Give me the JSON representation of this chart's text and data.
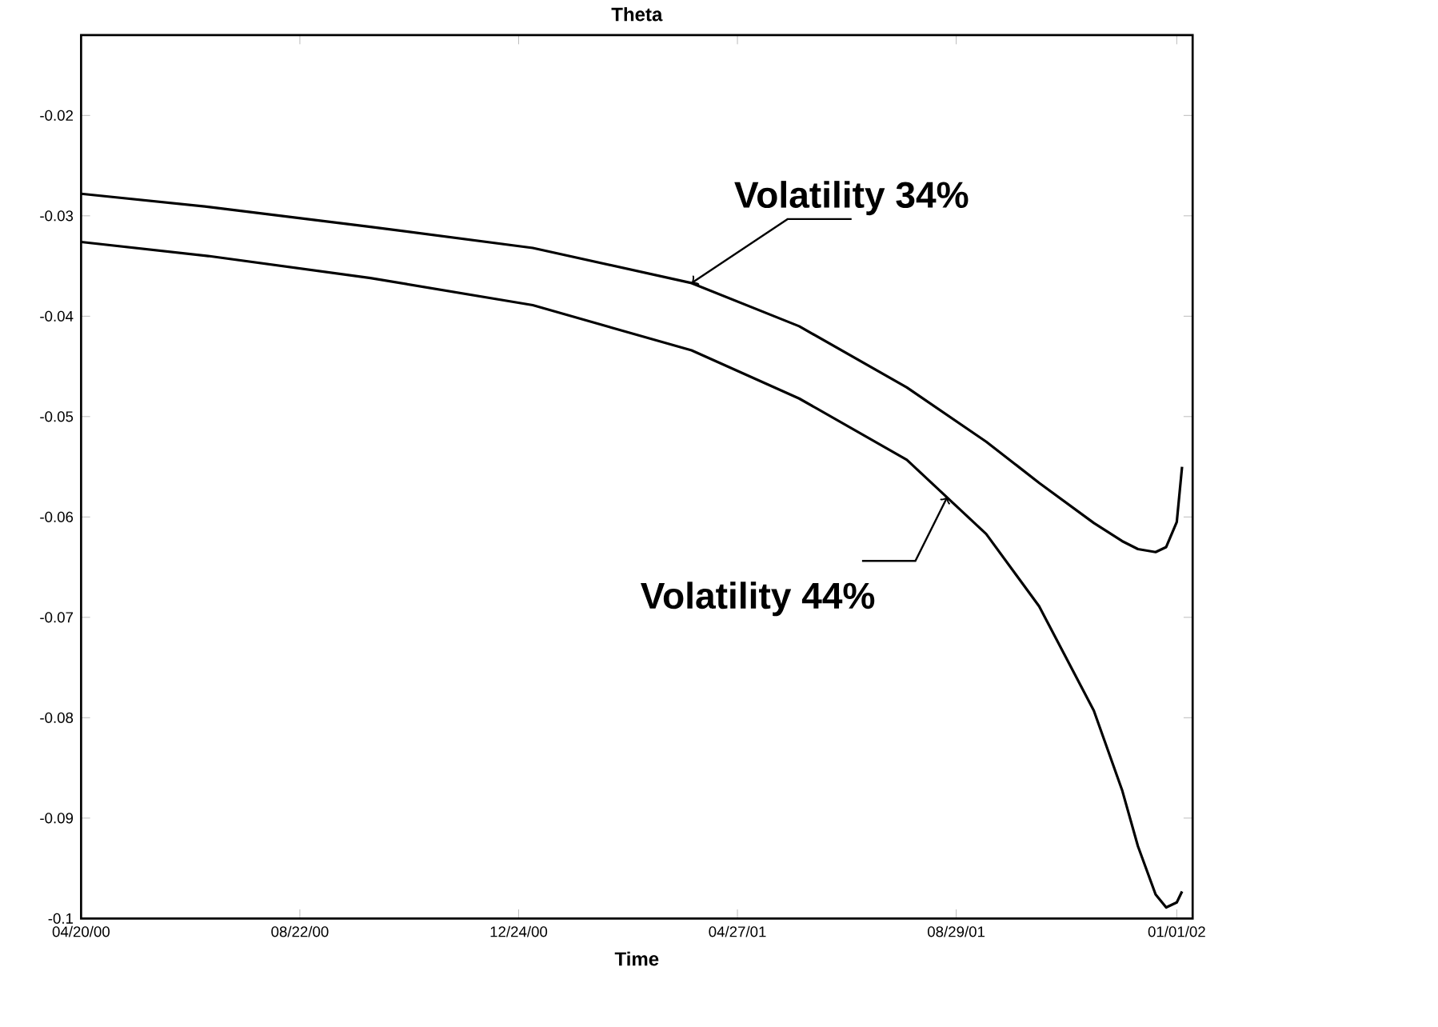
{
  "chart_data": {
    "type": "line",
    "title": "Theta",
    "xlabel": "Time",
    "x": [
      "2000-04-20",
      "2000-07-01",
      "2000-10-01",
      "2001-01-01",
      "2001-04-01",
      "2001-06-01",
      "2001-08-01",
      "2001-09-15",
      "2001-10-15",
      "2001-11-15",
      "2001-12-01",
      "2001-12-10",
      "2001-12-20",
      "2001-12-26",
      "2002-01-01",
      "2002-01-04"
    ],
    "series": [
      {
        "color": "#000000",
        "values": [
          -0.0278,
          -0.0291,
          -0.0311,
          -0.0332,
          -0.0367,
          -0.041,
          -0.0471,
          -0.0525,
          -0.0566,
          -0.0606,
          -0.0624,
          -0.0632,
          -0.0635,
          -0.063,
          -0.0605,
          -0.055
        ]
      },
      {
        "color": "#000000",
        "values": [
          -0.0326,
          -0.034,
          -0.0362,
          -0.0389,
          -0.0434,
          -0.0482,
          -0.0543,
          -0.0617,
          -0.0689,
          -0.0793,
          -0.0872,
          -0.0928,
          -0.0976,
          -0.0989,
          -0.0984,
          -0.0973
        ]
      }
    ],
    "xlim": [
      "2000-04-20",
      "2002-01-10"
    ],
    "xticks": [
      {
        "value": "2000-04-20",
        "label": "04/20/00"
      },
      {
        "value": "2000-08-22",
        "label": "08/22/00"
      },
      {
        "value": "2000-12-24",
        "label": "12/24/00"
      },
      {
        "value": "2001-04-27",
        "label": "04/27/01"
      },
      {
        "value": "2001-08-29",
        "label": "08/29/01"
      },
      {
        "value": "2002-01-01",
        "label": "01/01/02"
      }
    ],
    "ylim": [
      -0.1,
      -0.012
    ],
    "yticks": [
      -0.1,
      -0.09,
      -0.08,
      -0.07,
      -0.06,
      -0.05,
      -0.04,
      -0.03,
      -0.02
    ],
    "annotations": [
      {
        "text": "Volatility 34%",
        "x": "2001-04-01",
        "y": -0.0367
      },
      {
        "text": "Volatility 44%",
        "x": "2001-08-24",
        "y": -0.058
      }
    ],
    "grid": false,
    "marker": "none",
    "line_style": "solid"
  }
}
